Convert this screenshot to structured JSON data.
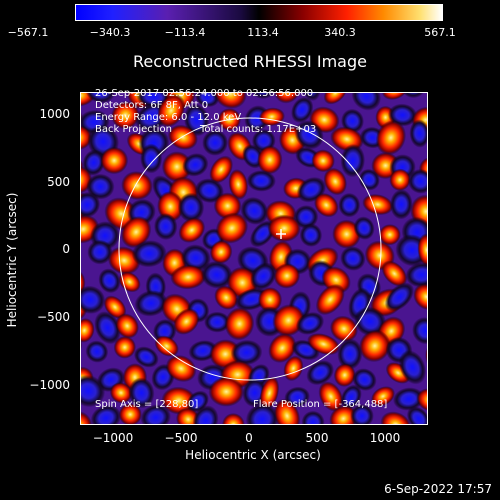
{
  "colorbar": {
    "ticks": [
      "−567.1",
      "−340.3",
      "−113.4",
      "113.4",
      "340.3",
      "567.1"
    ]
  },
  "title": "Reconstructed RHESSI Image",
  "annotations": {
    "time_range": "26-Sep-2017 02:56:24.000 to 02:56:56.000",
    "detectors": "Detectors: 6F 8F, Att 0",
    "energy_range": "Energy Range: 6.0 - 12.0 keV",
    "method": "Back Projection",
    "total_counts": "Total counts: 1.17E+03",
    "spin_axis": "Spin Axis = [228,80]",
    "flare_position": "Flare Position = [-364,488]"
  },
  "axes": {
    "xlabel": "Heliocentric X (arcsec)",
    "ylabel": "Heliocentric Y (arcsec)",
    "x_ticks": [
      "−1000",
      "−500",
      "0",
      "500",
      "1000"
    ],
    "y_ticks": [
      "1000",
      "500",
      "0",
      "−500",
      "−1000"
    ]
  },
  "datestamp": "6-Sep-2022 17:57",
  "colors": {
    "background": "#000000",
    "axis": "#ffffff",
    "limb_circle": "#ffffff"
  }
}
